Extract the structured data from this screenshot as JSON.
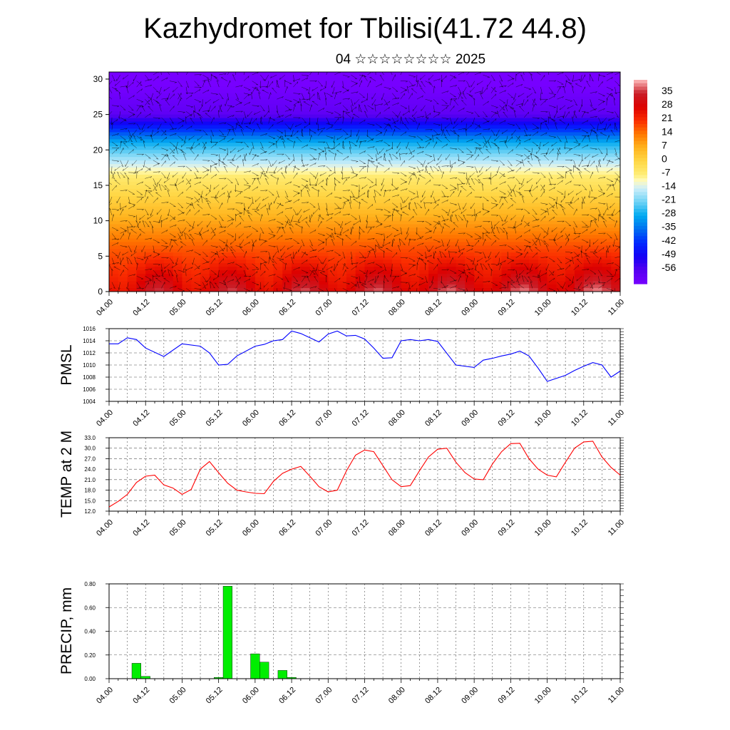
{
  "header": {
    "title": "Kazhydromet for Tbilisi(41.72 44.8)",
    "subtitle": "04 ☆☆☆☆☆☆☆☆ 2025"
  },
  "colors": {
    "pmsl_line": "#0000ff",
    "temp_line": "#ff0000",
    "precip_bar": "#00ee00",
    "wind_barb": "#000000"
  },
  "chart_data": [
    {
      "id": "cross-section",
      "type": "heatmap",
      "description": "Temperature shading with wind arrows over altitude",
      "y_ticks": [
        "0",
        "5",
        "10",
        "15",
        "20",
        "25",
        "30"
      ],
      "ylim": [
        0,
        31
      ],
      "x_ticks": [
        "04.00",
        "04.12",
        "05.00",
        "05.12",
        "06.00",
        "06.12",
        "07.00",
        "07.12",
        "08.00",
        "08.12",
        "09.00",
        "09.12",
        "10.00",
        "10.12",
        "11.00"
      ],
      "colorbar_labels": [
        "35",
        "28",
        "21",
        "14",
        "7",
        "0",
        "-7",
        "-14",
        "-21",
        "-28",
        "-35",
        "-42",
        "-49",
        "-56"
      ],
      "colorbar_range": [
        -63,
        42
      ]
    },
    {
      "id": "pmsl",
      "type": "line",
      "ylabel": "PMSL",
      "ylim": [
        1004,
        1016
      ],
      "y_ticks": [
        "1004",
        "1006",
        "1008",
        "1010",
        "1012",
        "1014",
        "1016"
      ],
      "x_ticks": [
        "04.00",
        "04.12",
        "05.00",
        "05.12",
        "06.00",
        "06.12",
        "07.00",
        "07.12",
        "08.00",
        "08.12",
        "09.00",
        "09.12",
        "10.00",
        "10.12",
        "11.00"
      ],
      "x_hours": [
        0,
        3,
        6,
        9,
        12,
        18,
        24,
        30,
        33,
        36,
        39,
        42,
        48,
        51,
        54,
        57,
        60,
        63,
        66,
        69,
        72,
        75,
        78,
        81,
        84,
        87,
        90,
        93,
        96,
        99,
        102,
        105,
        108,
        114,
        120,
        123,
        126,
        129,
        132,
        135,
        138,
        141,
        144,
        150,
        153,
        156,
        159,
        162,
        165,
        168
      ],
      "values": [
        1013.5,
        1013.5,
        1014.5,
        1014.2,
        1012.8,
        1011.4,
        1013.5,
        1013.1,
        1012.0,
        1010.0,
        1010.1,
        1011.5,
        1013.1,
        1013.4,
        1014.0,
        1014.2,
        1015.6,
        1015.2,
        1014.5,
        1013.8,
        1015.1,
        1015.6,
        1014.8,
        1014.9,
        1014.3,
        1012.8,
        1011.1,
        1011.2,
        1014.0,
        1014.2,
        1014.0,
        1014.2,
        1013.9,
        1010.0,
        1009.6,
        1010.8,
        1011.1,
        1011.5,
        1011.8,
        1012.3,
        1011.5,
        1009.5,
        1007.3,
        1008.3,
        1009.1,
        1009.8,
        1010.4,
        1010.0,
        1008.0,
        1009.0
      ]
    },
    {
      "id": "temp2m",
      "type": "line",
      "ylabel": "TEMP at 2 M",
      "ylim": [
        12,
        33
      ],
      "y_ticks": [
        "12.0",
        "15.0",
        "18.0",
        "21.0",
        "24.0",
        "27.0",
        "30.0",
        "33.0"
      ],
      "x_ticks": [
        "04.00",
        "04.12",
        "05.00",
        "05.12",
        "06.00",
        "06.12",
        "07.00",
        "07.12",
        "08.00",
        "08.12",
        "09.00",
        "09.12",
        "10.00",
        "10.12",
        "11.00"
      ],
      "x_hours": [
        0,
        3,
        6,
        9,
        12,
        15,
        18,
        21,
        24,
        27,
        30,
        33,
        36,
        39,
        42,
        45,
        48,
        51,
        54,
        57,
        60,
        63,
        66,
        69,
        72,
        75,
        78,
        81,
        84,
        87,
        90,
        93,
        96,
        99,
        102,
        105,
        108,
        111,
        114,
        117,
        120,
        123,
        126,
        129,
        132,
        135,
        138,
        141,
        144,
        147,
        150,
        153,
        156,
        159,
        162,
        165,
        168
      ],
      "values": [
        13.2,
        14.8,
        16.8,
        20.2,
        22.0,
        22.3,
        19.5,
        18.6,
        16.8,
        18.2,
        24.0,
        26.2,
        23.0,
        20.0,
        18.0,
        17.5,
        17.1,
        17.0,
        20.5,
        22.8,
        24.0,
        24.8,
        22.0,
        19.0,
        17.5,
        18.0,
        23.5,
        28.0,
        29.5,
        29.0,
        25.0,
        21.0,
        19.0,
        19.3,
        23.5,
        27.5,
        29.7,
        30.0,
        26.0,
        23.0,
        21.2,
        21.0,
        25.5,
        29.0,
        31.3,
        31.4,
        27.0,
        24.0,
        22.3,
        21.8,
        26.0,
        30.0,
        31.8,
        32.0,
        27.5,
        24.5,
        22.3
      ]
    },
    {
      "id": "precip",
      "type": "bar",
      "ylabel": "PRECIP, mm",
      "ylim": [
        0,
        0.8
      ],
      "y_ticks": [
        "0.00",
        "0.20",
        "0.40",
        "0.60",
        "0.80"
      ],
      "x_ticks": [
        "04.00",
        "04.12",
        "05.00",
        "05.12",
        "06.00",
        "06.12",
        "07.00",
        "07.12",
        "08.00",
        "08.12",
        "09.00",
        "09.12",
        "10.00",
        "10.12",
        "11.00"
      ],
      "bar_hours": [
        9,
        12,
        36,
        39,
        48,
        51,
        57,
        60
      ],
      "values": [
        0.13,
        0.02,
        0.01,
        0.78,
        0.21,
        0.14,
        0.07,
        0.01
      ]
    }
  ]
}
